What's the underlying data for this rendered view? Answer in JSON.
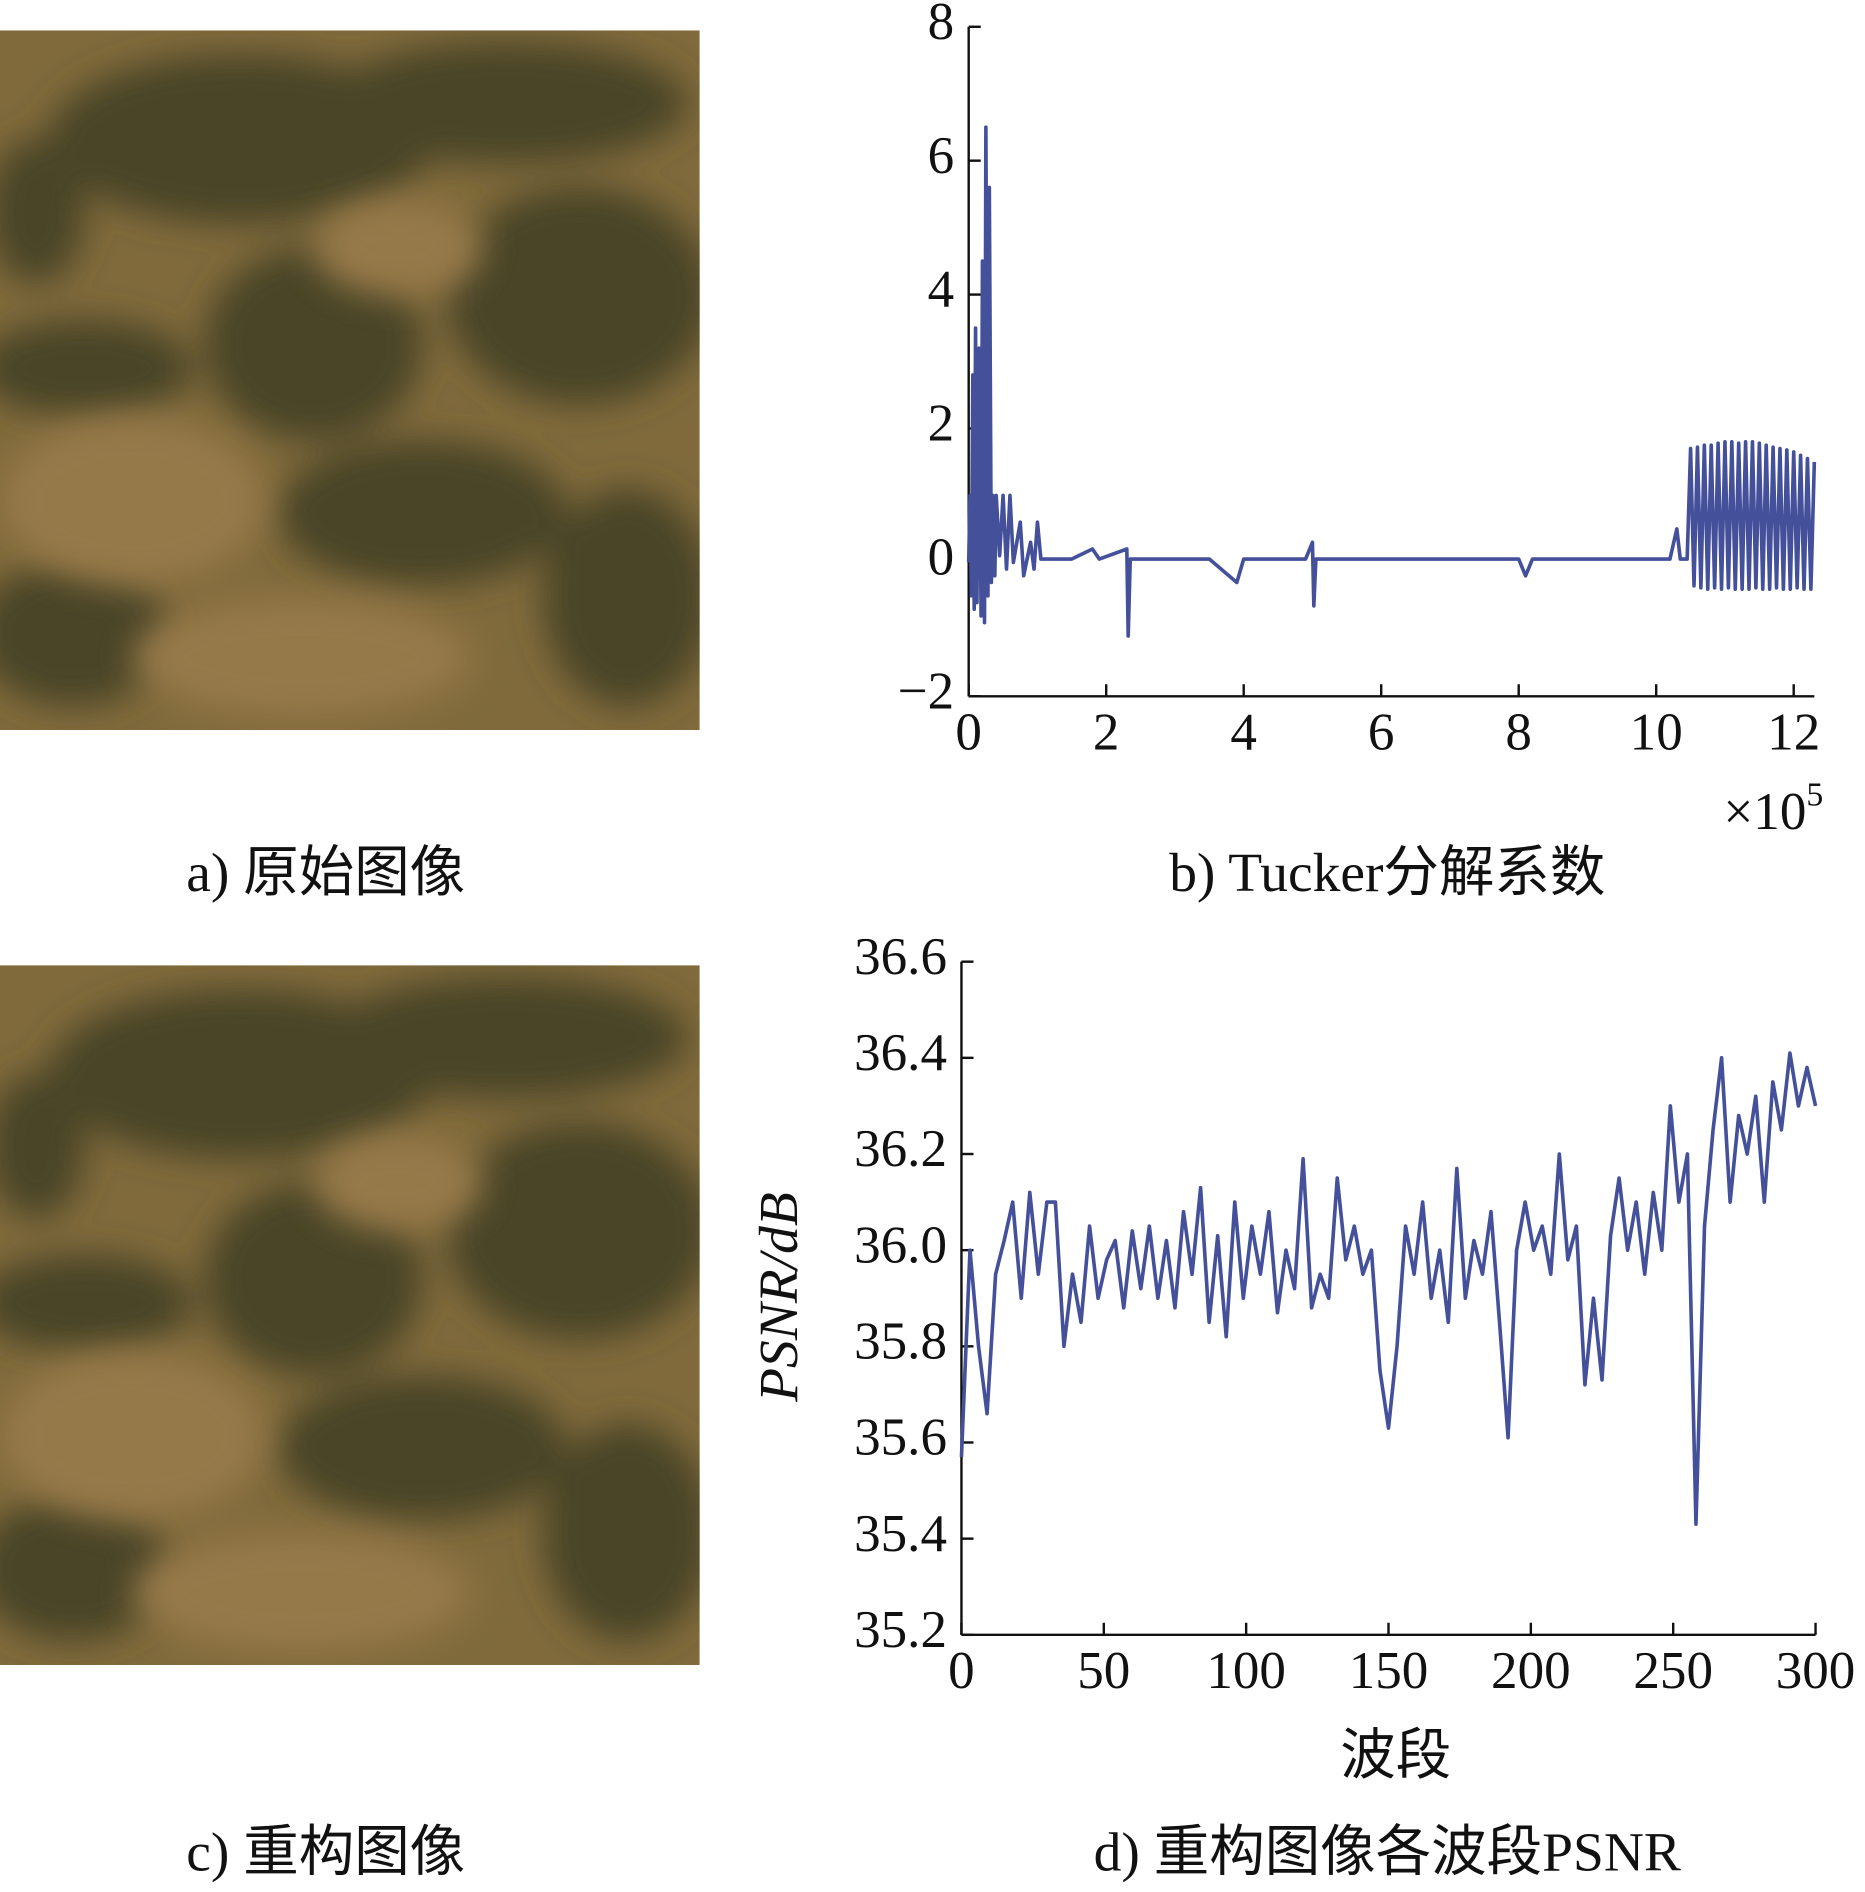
{
  "images": [
    {
      "caption": "a) 原始图像"
    },
    {
      "caption": "c) 重构图像"
    }
  ],
  "chart_data": [
    {
      "type": "line",
      "caption": "b) Tucker分解系数",
      "x_multiplier": "×10",
      "x_multiplier_exponent": "5",
      "xlim": [
        0,
        12.3
      ],
      "xticks": [
        0,
        2,
        4,
        6,
        8,
        10,
        12
      ],
      "ylim": [
        -2,
        8
      ],
      "yticks": [
        {
          "value": -2,
          "label": "−2"
        },
        0,
        2,
        4,
        6,
        8
      ],
      "series": [
        {
          "color": "#44519a",
          "x": [
            0,
            0.02,
            0.04,
            0.06,
            0.08,
            0.1,
            0.12,
            0.15,
            0.18,
            0.2,
            0.23,
            0.25,
            0.28,
            0.3,
            0.33,
            0.35,
            0.38,
            0.4,
            0.45,
            0.5,
            0.55,
            0.6,
            0.65,
            0.75,
            0.8,
            0.9,
            0.95,
            1.0,
            1.05,
            1.5,
            1.8,
            1.9,
            2.3,
            2.32,
            2.35,
            3.5,
            3.9,
            4.0,
            4.9,
            5.0,
            5.02,
            5.05,
            6.0,
            7.0,
            8.0,
            8.1,
            8.2,
            10.2,
            10.3,
            10.35,
            10.45,
            10.5,
            10.55,
            10.6,
            10.65,
            10.7,
            10.75,
            10.8,
            10.85,
            10.9,
            10.95,
            11.0,
            11.05,
            11.1,
            11.15,
            11.2,
            11.25,
            11.3,
            11.35,
            11.4,
            11.45,
            11.5,
            11.55,
            11.6,
            11.65,
            11.7,
            11.75,
            11.8,
            11.85,
            11.9,
            11.95,
            12.0,
            12.05,
            12.1,
            12.15,
            12.2,
            12.25,
            12.3
          ],
          "values": [
            0,
            1.0,
            -0.5,
            2.8,
            -0.7,
            3.5,
            -0.6,
            3.2,
            -0.8,
            4.5,
            -0.9,
            6.5,
            -0.5,
            5.6,
            -0.3,
            1.0,
            -0.2,
            1.0,
            0.1,
            1.0,
            -0.1,
            1.0,
            0,
            0.6,
            -0.2,
            0.3,
            -0.1,
            0.6,
            0.05,
            0.05,
            0.2,
            0.05,
            0.2,
            -1.1,
            0.05,
            0.05,
            -0.3,
            0.05,
            0.05,
            0.3,
            -0.65,
            0.05,
            0.05,
            0.05,
            0.05,
            -0.2,
            0.05,
            0.05,
            0.5,
            0.05,
            0.05,
            1.7,
            -0.35,
            1.72,
            -0.38,
            1.75,
            -0.4,
            1.75,
            -0.38,
            1.78,
            -0.4,
            1.8,
            -0.38,
            1.8,
            -0.4,
            1.78,
            -0.4,
            1.8,
            -0.4,
            1.8,
            -0.38,
            1.78,
            -0.4,
            1.75,
            -0.4,
            1.72,
            -0.38,
            1.7,
            -0.4,
            1.68,
            -0.4,
            1.65,
            -0.38,
            1.6,
            -0.4,
            1.55,
            -0.4,
            1.5
          ]
        }
      ]
    },
    {
      "type": "line",
      "caption": "d) 重构图像各波段PSNR",
      "xlabel": "波段",
      "ylabel": "PSNR/dB",
      "xlim": [
        0,
        300
      ],
      "xticks": [
        0,
        50,
        100,
        150,
        200,
        250,
        300
      ],
      "ylim": [
        35.2,
        36.6
      ],
      "yticks": [
        35.2,
        35.4,
        35.6,
        35.8,
        {
          "value": 36,
          "label": "36.0"
        },
        36.2,
        36.4,
        36.6
      ],
      "series": [
        {
          "color": "#44519a",
          "x": [
            0,
            3,
            6,
            9,
            12,
            15,
            18,
            21,
            24,
            27,
            30,
            33,
            36,
            39,
            42,
            45,
            48,
            51,
            54,
            57,
            60,
            63,
            66,
            69,
            72,
            75,
            78,
            81,
            84,
            87,
            90,
            93,
            96,
            99,
            102,
            105,
            108,
            111,
            114,
            117,
            120,
            123,
            126,
            129,
            132,
            135,
            138,
            141,
            144,
            147,
            150,
            153,
            156,
            159,
            162,
            165,
            168,
            171,
            174,
            177,
            180,
            183,
            186,
            189,
            192,
            195,
            198,
            201,
            204,
            207,
            210,
            213,
            216,
            219,
            222,
            225,
            228,
            231,
            234,
            237,
            240,
            243,
            246,
            249,
            252,
            255,
            258,
            261,
            264,
            267,
            270,
            273,
            276,
            279,
            282,
            285,
            288,
            291,
            294,
            297,
            300
          ],
          "values": [
            35.57,
            36.0,
            35.8,
            35.66,
            35.95,
            36.02,
            36.1,
            35.9,
            36.12,
            35.95,
            36.1,
            36.1,
            35.8,
            35.95,
            35.85,
            36.05,
            35.9,
            35.98,
            36.02,
            35.88,
            36.04,
            35.92,
            36.05,
            35.9,
            36.02,
            35.88,
            36.08,
            35.95,
            36.13,
            35.85,
            36.03,
            35.82,
            36.1,
            35.9,
            36.05,
            35.95,
            36.08,
            35.87,
            36.0,
            35.92,
            36.19,
            35.88,
            35.95,
            35.9,
            36.15,
            35.98,
            36.05,
            35.95,
            36.0,
            35.75,
            35.63,
            35.8,
            36.05,
            35.95,
            36.1,
            35.9,
            36.0,
            35.85,
            36.17,
            35.9,
            36.02,
            35.95,
            36.08,
            35.85,
            35.61,
            36.0,
            36.1,
            36.0,
            36.05,
            35.95,
            36.2,
            35.98,
            36.05,
            35.72,
            35.9,
            35.73,
            36.03,
            36.15,
            36.0,
            36.1,
            35.95,
            36.12,
            36.0,
            36.3,
            36.1,
            36.2,
            35.43,
            36.05,
            36.25,
            36.4,
            36.1,
            36.28,
            36.2,
            36.32,
            36.1,
            36.35,
            36.25,
            36.41,
            36.3,
            36.38,
            36.3
          ]
        }
      ]
    }
  ]
}
